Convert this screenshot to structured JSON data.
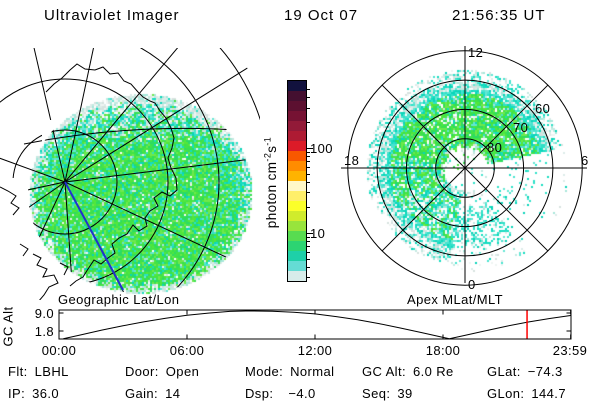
{
  "title": {
    "app": "Ultraviolet Imager",
    "date": "19 Oct 07",
    "time": "21:56:35 UT"
  },
  "left_panel": {
    "caption": "Geographic Lat/Lon"
  },
  "colorbar": {
    "unit_base1": "photon cm",
    "unit_sup1": "-2",
    "unit_base2": "s",
    "unit_sup2": "-1",
    "major_ticks": [
      "100",
      "10"
    ],
    "colors": [
      "#12123e",
      "#441030",
      "#5c1030",
      "#761233",
      "#921a38",
      "#ae1b33",
      "#dc1b28",
      "#f85800",
      "#ff8c00",
      "#ffb300",
      "#fff8c8",
      "#ffef6a",
      "#fbff2a",
      "#d0ec2c",
      "#98e43c",
      "#58dc50",
      "#2cd472",
      "#1ed0a8",
      "#64dcd4",
      "#d8ecea"
    ]
  },
  "polar_panel": {
    "caption": "Apex MLat/MLT",
    "mlt_top": "12",
    "mlt_left": "18",
    "mlt_right": "6",
    "mlt_bottom": "0",
    "lat_ring_labels": [
      "80",
      "70",
      "60"
    ]
  },
  "alt_panel": {
    "ylabel": "GC Alt",
    "ytick_top": "9.0",
    "ytick_bottom": "1.8",
    "xticks": [
      "00:00",
      "06:00",
      "12:00",
      "18:00",
      "23:59"
    ]
  },
  "status": {
    "row1": [
      {
        "label": "Flt:",
        "value": "LBHL"
      },
      {
        "label": "Door:",
        "value": "Open"
      },
      {
        "label": "Mode:",
        "value": "Normal"
      },
      {
        "label": "GC Alt:",
        "value": "6.0 Re"
      },
      {
        "label": "GLat:",
        "value": "−74.3"
      }
    ],
    "row2": [
      {
        "label": "IP:",
        "value": "36.0"
      },
      {
        "label": "Gain:",
        "value": "14"
      },
      {
        "label": "Dsp:",
        "value": "−4.0"
      },
      {
        "label": "Seq:",
        "value": "39"
      },
      {
        "label": "GLon:",
        "value": "144.7"
      }
    ]
  },
  "colors": {
    "background": "#ffffff",
    "text": "#000000",
    "grid": "#000000",
    "track_line": "#2233cc",
    "time_marker": "#ff0000",
    "aurora_cyan": [
      "#14ddc1",
      "#2ee0c8",
      "#47e4cf",
      "#09d5b9",
      "#63e7d4"
    ],
    "aurora_green": [
      "#38e14e",
      "#52e73b",
      "#2bdb64",
      "#6ee84d",
      "#44e344"
    ],
    "aurora_pale": [
      "#ffffff",
      "#eef4f2",
      "#dcebe8",
      "#c3e9e0",
      "#a6e7da",
      "#d6e2df"
    ]
  },
  "chart_data": [
    {
      "type": "heatmap",
      "title": "Geographic Lat/Lon",
      "units": "photon cm^-2 s^-1",
      "scale": "log",
      "colorbar_ticks": [
        100,
        10
      ],
      "description": "UV auroral image disk over southern-hemisphere geographic lat/lon graticule with Antarctic coastline; mostly 5-30 photon range (cyan/green), pale toward sunlit top edge"
    },
    {
      "type": "heatmap",
      "title": "Apex MLat/MLT",
      "rings_lat": [
        80,
        70,
        60,
        50
      ],
      "mlt_marks": [
        12,
        18,
        6,
        0
      ],
      "description": "auroral oval between ~60 and ~80 MLat, brightest (green) from dusk through noon sector, data gap near 03-06 MLT lower right"
    },
    {
      "type": "line",
      "title": "GC Alt vs UT",
      "ylabel": "GC Alt",
      "yticks": [
        9.0,
        1.8
      ],
      "xticks": [
        "00:00",
        "06:00",
        "12:00",
        "18:00",
        "23:59"
      ],
      "x_hours": [
        0.2,
        1,
        2,
        3,
        4,
        5,
        6,
        7,
        8,
        9,
        10,
        11,
        12,
        13,
        14,
        15,
        16,
        17,
        18,
        18.3,
        19,
        20,
        21,
        22,
        23,
        23.98
      ],
      "gc_alt_re": [
        0,
        1.4,
        3.2,
        4.8,
        6.3,
        7.6,
        8.7,
        9.5,
        10.1,
        10.3,
        10.2,
        9.8,
        9.2,
        8.2,
        7.0,
        5.6,
        4.0,
        2.3,
        0.5,
        0,
        1.2,
        3.0,
        4.7,
        6.2,
        7.5,
        8.6
      ],
      "marker_hour": 21.94
    }
  ]
}
